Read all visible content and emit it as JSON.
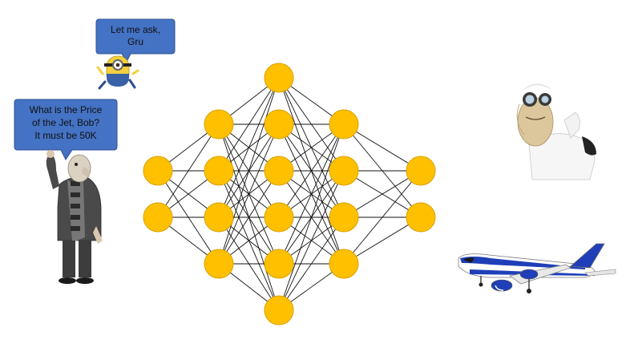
{
  "colors": {
    "node_fill": "#FFC000",
    "node_stroke": "#D7A100",
    "edge": "#111111",
    "bubble_fill": "#4472C4",
    "bubble_stroke": "#2F528F"
  },
  "speech_bubbles": {
    "minion": {
      "line1": "Let me ask,",
      "line2": "Gru"
    },
    "gru": {
      "line1": "What is the Price",
      "line2": "of the Jet, Bob?",
      "line3": "It must be 50K"
    }
  },
  "characters": {
    "minion": "minion-character",
    "gru": "gru-character",
    "scientist": "scientist-character",
    "jet": "jet-airplane"
  },
  "network": {
    "layers": [
      {
        "nodes": 2
      },
      {
        "nodes": 4
      },
      {
        "nodes": 6
      },
      {
        "nodes": 4
      },
      {
        "nodes": 2
      }
    ]
  }
}
